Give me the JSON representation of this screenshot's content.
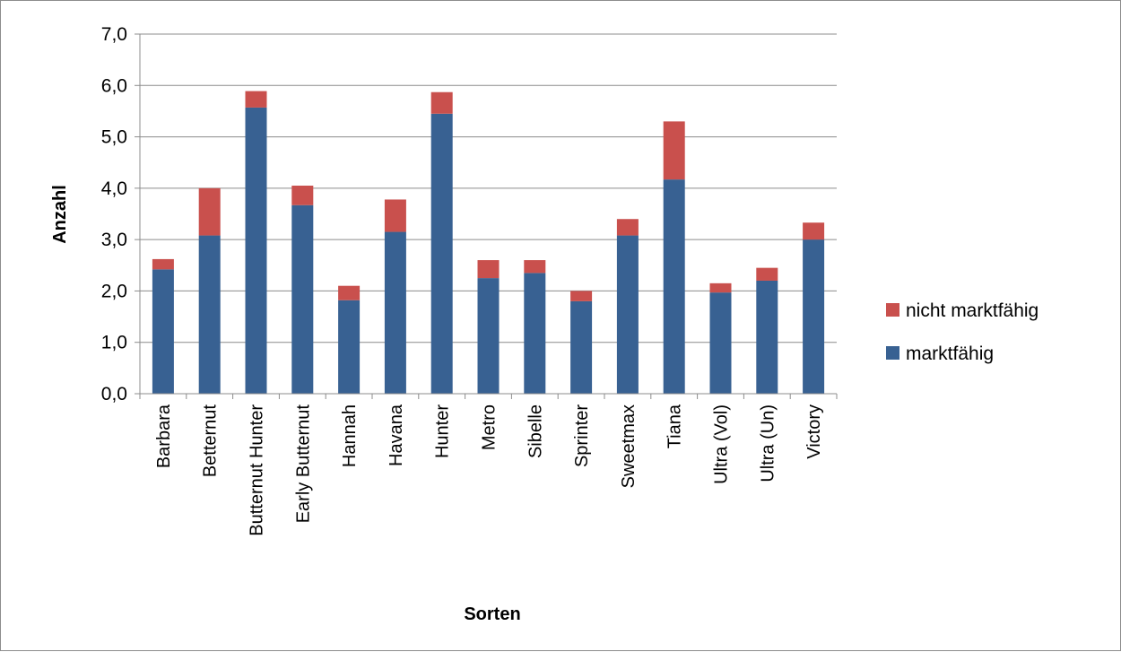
{
  "chart_data": {
    "type": "bar",
    "stacked": true,
    "categories": [
      "Barbara",
      "Betternut",
      "Butternut Hunter",
      "Early Butternut",
      "Hannah",
      "Havana",
      "Hunter",
      "Metro",
      "Sibelle",
      "Sprinter",
      "Sweetmax",
      "Tiana",
      "Ultra (Vol)",
      "Ultra (Un)",
      "Victory"
    ],
    "series": [
      {
        "name": "marktfähig",
        "color": "#386192",
        "values": [
          2.42,
          3.08,
          5.57,
          3.67,
          1.82,
          3.15,
          5.45,
          2.25,
          2.35,
          1.8,
          3.08,
          4.17,
          1.97,
          2.2,
          3.0
        ]
      },
      {
        "name": "nicht marktfähig",
        "color": "#C9504D",
        "values": [
          0.2,
          0.92,
          0.32,
          0.38,
          0.28,
          0.63,
          0.42,
          0.35,
          0.25,
          0.2,
          0.32,
          1.13,
          0.18,
          0.25,
          0.33
        ]
      }
    ],
    "xlabel": "Sorten",
    "ylabel": "Anzahl",
    "ylim": [
      0,
      7
    ],
    "yticks": [
      "0,0",
      "1,0",
      "2,0",
      "3,0",
      "4,0",
      "5,0",
      "6,0",
      "7,0"
    ],
    "grid": true,
    "legend_position": "right",
    "legend_order": [
      "nicht marktfähig",
      "marktfähig"
    ]
  }
}
